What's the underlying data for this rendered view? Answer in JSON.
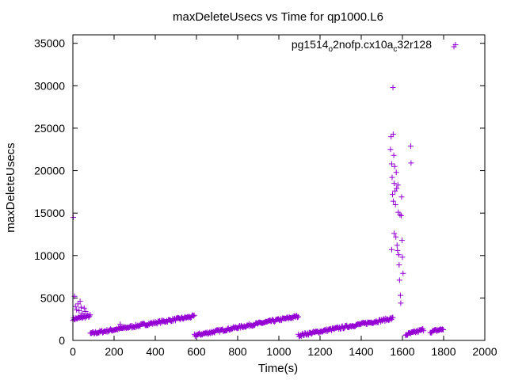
{
  "chart_data": {
    "type": "scatter",
    "title": "maxDeleteUsecs vs Time for qp1000.L6",
    "xlabel": "Time(s)",
    "ylabel": "maxDeleteUsecs",
    "xlim": [
      0,
      2000
    ],
    "ylim": [
      0,
      36000
    ],
    "xticks": [
      0,
      200,
      400,
      600,
      800,
      1000,
      1200,
      1400,
      1600,
      1800,
      2000
    ],
    "yticks": [
      0,
      5000,
      10000,
      15000,
      20000,
      25000,
      30000,
      35000
    ],
    "grid": false,
    "legend": {
      "placement": "top-right",
      "base": "pg1514",
      "sub1": "o",
      "mid": "2nofp.cx10a",
      "sub2": "c",
      "tail": "32r128"
    },
    "color": "#9400d3",
    "series": [
      {
        "name": "pg1514_o2nofp.cx10a_c32r128",
        "segments": [
          {
            "x_start": 0,
            "x_end": 85,
            "y_start": 2500,
            "y_end": 2900
          },
          {
            "x_start": 85,
            "x_end": 590,
            "y_start": 800,
            "y_end": 2850
          },
          {
            "x_start": 590,
            "x_end": 1095,
            "y_start": 600,
            "y_end": 2850
          },
          {
            "x_start": 1095,
            "x_end": 1555,
            "y_start": 600,
            "y_end": 2600
          },
          {
            "x_start": 1615,
            "x_end": 1705,
            "y_start": 650,
            "y_end": 1300
          },
          {
            "x_start": 1735,
            "x_end": 1800,
            "y_start": 1000,
            "y_end": 1350
          }
        ],
        "outliers": [
          {
            "x": 2,
            "y": 14500
          },
          {
            "x": 8,
            "y": 5200
          },
          {
            "x": 12,
            "y": 4000
          },
          {
            "x": 18,
            "y": 3600
          },
          {
            "x": 25,
            "y": 4300
          },
          {
            "x": 30,
            "y": 3500
          },
          {
            "x": 35,
            "y": 4600
          },
          {
            "x": 40,
            "y": 3900
          },
          {
            "x": 45,
            "y": 3200
          },
          {
            "x": 55,
            "y": 3800
          },
          {
            "x": 62,
            "y": 3400
          },
          {
            "x": 230,
            "y": 1900
          },
          {
            "x": 1542,
            "y": 22500
          },
          {
            "x": 1545,
            "y": 24000
          },
          {
            "x": 1548,
            "y": 20800
          },
          {
            "x": 1550,
            "y": 19200
          },
          {
            "x": 1552,
            "y": 17200
          },
          {
            "x": 1554,
            "y": 29800
          },
          {
            "x": 1555,
            "y": 24300
          },
          {
            "x": 1556,
            "y": 16400
          },
          {
            "x": 1558,
            "y": 21800
          },
          {
            "x": 1560,
            "y": 18500
          },
          {
            "x": 1562,
            "y": 20500
          },
          {
            "x": 1564,
            "y": 17600
          },
          {
            "x": 1566,
            "y": 16000
          },
          {
            "x": 1568,
            "y": 12200
          },
          {
            "x": 1570,
            "y": 19800
          },
          {
            "x": 1572,
            "y": 17900
          },
          {
            "x": 1574,
            "y": 11200
          },
          {
            "x": 1576,
            "y": 10600
          },
          {
            "x": 1578,
            "y": 18300
          },
          {
            "x": 1580,
            "y": 15100
          },
          {
            "x": 1582,
            "y": 10100
          },
          {
            "x": 1584,
            "y": 8900
          },
          {
            "x": 1586,
            "y": 7100
          },
          {
            "x": 1588,
            "y": 14800
          },
          {
            "x": 1590,
            "y": 5300
          },
          {
            "x": 1592,
            "y": 4400
          },
          {
            "x": 1594,
            "y": 14700
          },
          {
            "x": 1598,
            "y": 11800
          },
          {
            "x": 1600,
            "y": 9800
          },
          {
            "x": 1603,
            "y": 7900
          },
          {
            "x": 1548,
            "y": 10700
          },
          {
            "x": 1560,
            "y": 12600
          },
          {
            "x": 1596,
            "y": 16900
          },
          {
            "x": 1640,
            "y": 22900
          },
          {
            "x": 1642,
            "y": 20900
          },
          {
            "x": 1850,
            "y": 34600
          }
        ]
      }
    ]
  }
}
